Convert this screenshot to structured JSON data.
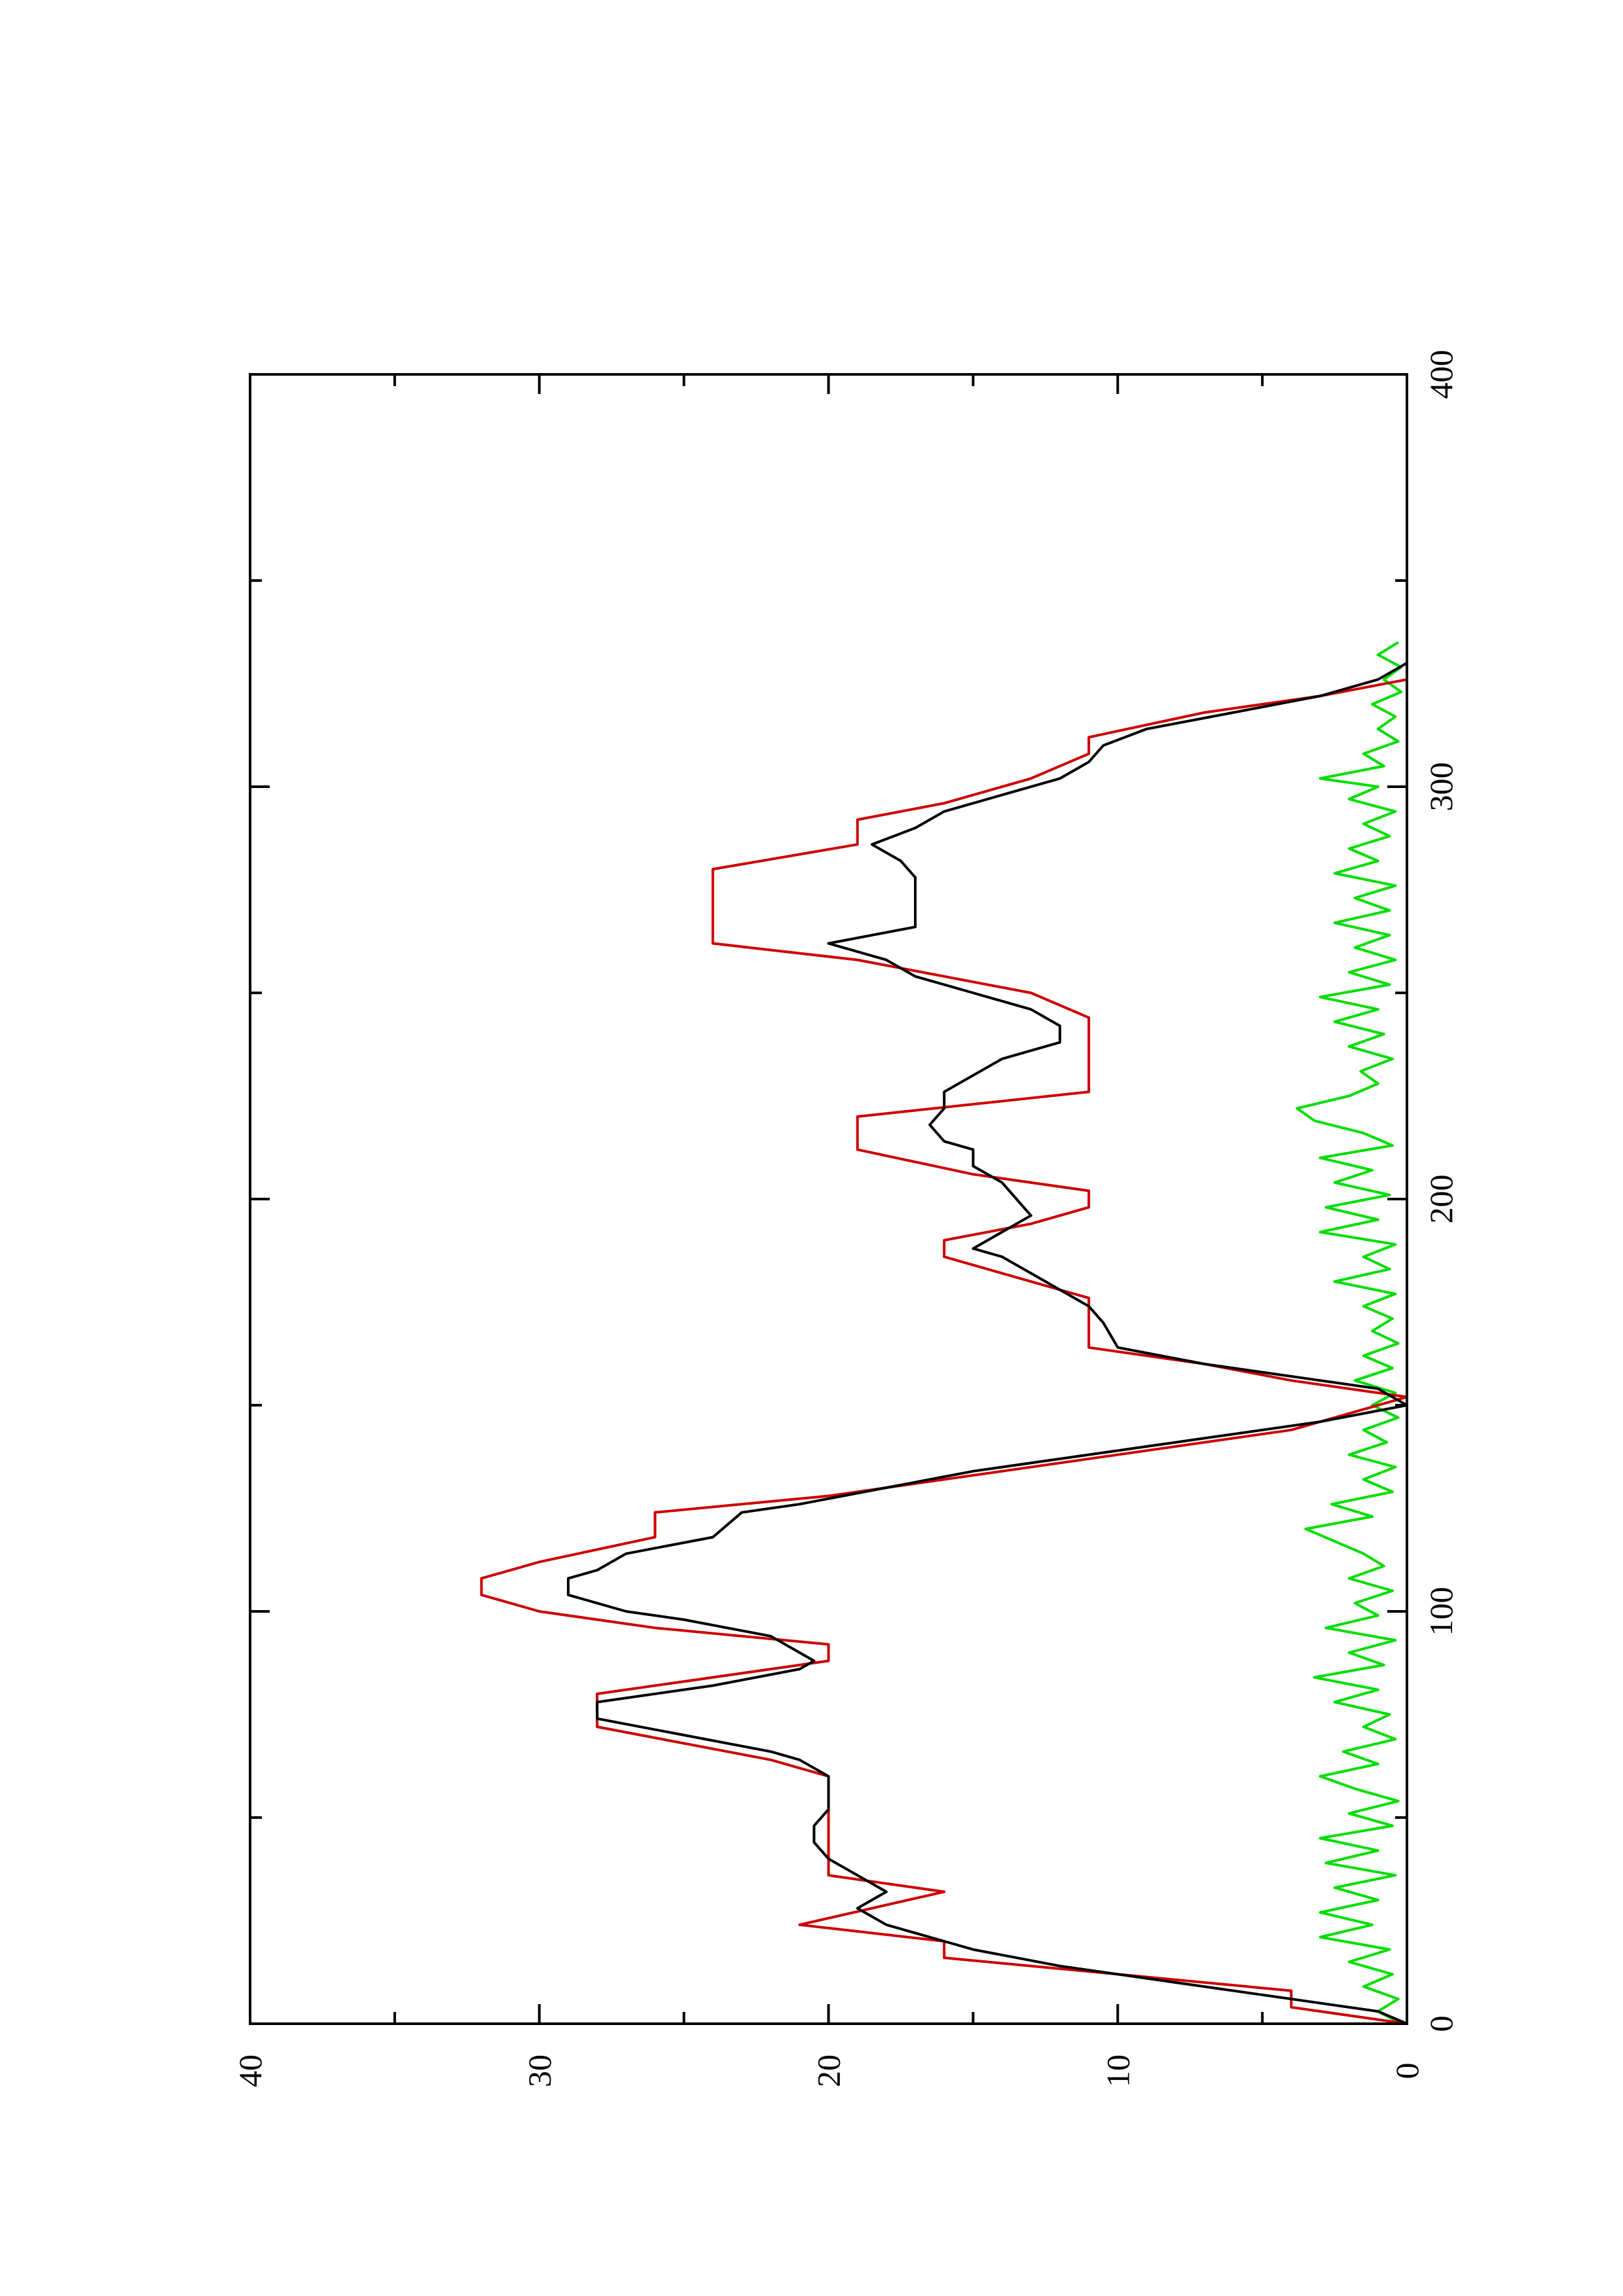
{
  "colors": {
    "background": "#ffffff",
    "frame": "#000000",
    "step_series": "#cc0000",
    "smooth_series": "#000000",
    "noise_series": "#00dd00"
  },
  "chart_data": {
    "type": "line",
    "orientation": "rotated-90-ccw",
    "title": "",
    "xlabel": "",
    "ylabel": "",
    "xlim": [
      0,
      400
    ],
    "ylim": [
      0,
      40
    ],
    "x_ticks": [
      0,
      100,
      200,
      300,
      400
    ],
    "x_minor_ticks": [
      50,
      150,
      250,
      350
    ],
    "y_ticks": [
      0,
      10,
      20,
      30,
      40
    ],
    "y_minor_ticks": [
      5,
      15,
      25,
      35
    ],
    "x_tick_labels": [
      "0",
      "100",
      "200",
      "300",
      "400"
    ],
    "y_tick_labels": [
      "0",
      "10",
      "20",
      "30",
      "40"
    ],
    "grid": false,
    "legend": "none",
    "series": [
      {
        "color": "#cc0000",
        "points": [
          [
            0,
            0
          ],
          [
            4,
            4
          ],
          [
            8,
            4
          ],
          [
            16,
            16
          ],
          [
            20,
            16
          ],
          [
            24,
            21
          ],
          [
            32,
            16
          ],
          [
            36,
            20
          ],
          [
            48,
            20
          ],
          [
            56,
            20
          ],
          [
            60,
            20
          ],
          [
            64,
            22
          ],
          [
            72,
            28
          ],
          [
            80,
            28
          ],
          [
            88,
            20
          ],
          [
            92,
            20
          ],
          [
            96,
            26
          ],
          [
            100,
            30
          ],
          [
            104,
            32
          ],
          [
            108,
            32
          ],
          [
            112,
            30
          ],
          [
            118,
            26
          ],
          [
            124,
            26
          ],
          [
            128,
            20
          ],
          [
            132,
            16
          ],
          [
            140,
            8
          ],
          [
            144,
            4
          ],
          [
            152,
            0
          ],
          [
            156,
            4
          ],
          [
            160,
            7
          ],
          [
            164,
            11
          ],
          [
            170,
            11
          ],
          [
            176,
            11
          ],
          [
            182,
            14
          ],
          [
            186,
            16
          ],
          [
            190,
            16
          ],
          [
            194,
            13
          ],
          [
            198,
            11
          ],
          [
            202,
            11
          ],
          [
            206,
            15
          ],
          [
            212,
            19
          ],
          [
            220,
            19
          ],
          [
            226,
            11
          ],
          [
            236,
            11
          ],
          [
            244,
            11
          ],
          [
            250,
            13
          ],
          [
            254,
            16
          ],
          [
            258,
            19
          ],
          [
            262,
            24
          ],
          [
            280,
            24
          ],
          [
            286,
            19
          ],
          [
            292,
            19
          ],
          [
            296,
            16
          ],
          [
            302,
            13
          ],
          [
            308,
            11
          ],
          [
            312,
            11
          ],
          [
            318,
            7
          ],
          [
            322,
            3
          ],
          [
            326,
            0
          ],
          [
            334,
            0
          ]
        ]
      },
      {
        "color": "#000000",
        "points": [
          [
            0,
            0
          ],
          [
            3,
            1
          ],
          [
            6,
            4
          ],
          [
            10,
            8
          ],
          [
            14,
            12
          ],
          [
            18,
            15
          ],
          [
            20,
            16
          ],
          [
            24,
            18
          ],
          [
            28,
            19
          ],
          [
            32,
            18
          ],
          [
            36,
            19
          ],
          [
            40,
            20
          ],
          [
            44,
            20.5
          ],
          [
            48,
            20.5
          ],
          [
            52,
            20
          ],
          [
            56,
            20
          ],
          [
            60,
            20
          ],
          [
            64,
            21
          ],
          [
            66,
            22
          ],
          [
            70,
            25
          ],
          [
            74,
            28
          ],
          [
            78,
            28
          ],
          [
            82,
            24
          ],
          [
            86,
            21
          ],
          [
            88,
            20.5
          ],
          [
            90,
            21
          ],
          [
            94,
            22
          ],
          [
            98,
            25
          ],
          [
            100,
            27
          ],
          [
            104,
            29
          ],
          [
            108,
            29
          ],
          [
            110,
            28
          ],
          [
            114,
            27
          ],
          [
            118,
            24
          ],
          [
            124,
            23
          ],
          [
            126,
            21
          ],
          [
            130,
            18
          ],
          [
            134,
            15
          ],
          [
            138,
            11
          ],
          [
            142,
            7
          ],
          [
            146,
            3
          ],
          [
            150,
            0
          ],
          [
            154,
            1
          ],
          [
            156,
            3
          ],
          [
            160,
            7
          ],
          [
            164,
            10
          ],
          [
            170,
            10.5
          ],
          [
            174,
            11
          ],
          [
            178,
            12
          ],
          [
            182,
            13
          ],
          [
            186,
            14
          ],
          [
            188,
            15
          ],
          [
            192,
            14
          ],
          [
            196,
            13
          ],
          [
            200,
            13.5
          ],
          [
            204,
            14
          ],
          [
            208,
            15
          ],
          [
            212,
            15
          ],
          [
            214,
            16
          ],
          [
            218,
            16.5
          ],
          [
            222,
            16
          ],
          [
            226,
            16
          ],
          [
            230,
            15
          ],
          [
            234,
            14
          ],
          [
            238,
            12
          ],
          [
            242,
            12
          ],
          [
            246,
            13
          ],
          [
            250,
            15
          ],
          [
            254,
            17
          ],
          [
            258,
            18
          ],
          [
            262,
            20
          ],
          [
            266,
            17
          ],
          [
            270,
            17
          ],
          [
            274,
            17
          ],
          [
            278,
            17
          ],
          [
            282,
            17.5
          ],
          [
            286,
            18.5
          ],
          [
            290,
            17
          ],
          [
            294,
            16
          ],
          [
            298,
            14
          ],
          [
            302,
            12
          ],
          [
            306,
            11
          ],
          [
            310,
            10.5
          ],
          [
            314,
            9
          ],
          [
            318,
            6
          ],
          [
            322,
            3
          ],
          [
            326,
            1
          ],
          [
            330,
            0
          ]
        ]
      },
      {
        "color": "#00dd00",
        "points": [
          [
            0,
            0.2
          ],
          [
            3,
            1
          ],
          [
            6,
            0.3
          ],
          [
            9,
            1.5
          ],
          [
            12,
            0.5
          ],
          [
            15,
            2
          ],
          [
            18,
            0.6
          ],
          [
            21,
            3
          ],
          [
            24,
            1.2
          ],
          [
            27,
            3
          ],
          [
            30,
            1
          ],
          [
            33,
            2.5
          ],
          [
            36,
            0.4
          ],
          [
            39,
            2.8
          ],
          [
            42,
            1
          ],
          [
            45,
            3
          ],
          [
            48,
            0.5
          ],
          [
            51,
            2
          ],
          [
            54,
            0.3
          ],
          [
            57,
            1.8
          ],
          [
            60,
            3
          ],
          [
            63,
            1
          ],
          [
            66,
            2.2
          ],
          [
            69,
            0.4
          ],
          [
            72,
            1.5
          ],
          [
            75,
            0.6
          ],
          [
            78,
            2.5
          ],
          [
            81,
            1
          ],
          [
            84,
            3.2
          ],
          [
            87,
            0.8
          ],
          [
            90,
            2
          ],
          [
            93,
            0.4
          ],
          [
            96,
            2.8
          ],
          [
            99,
            1
          ],
          [
            102,
            1.8
          ],
          [
            105,
            0.5
          ],
          [
            108,
            2
          ],
          [
            111,
            0.8
          ],
          [
            114,
            1.5
          ],
          [
            117,
            2.5
          ],
          [
            120,
            3.5
          ],
          [
            123,
            1.2
          ],
          [
            126,
            2.6
          ],
          [
            129,
            0.5
          ],
          [
            132,
            1.5
          ],
          [
            135,
            0.4
          ],
          [
            138,
            2
          ],
          [
            141,
            0.7
          ],
          [
            144,
            1.5
          ],
          [
            147,
            0.3
          ],
          [
            150,
            1.2
          ],
          [
            153,
            0.4
          ],
          [
            156,
            1.8
          ],
          [
            159,
            0.5
          ],
          [
            162,
            1.5
          ],
          [
            165,
            0.3
          ],
          [
            168,
            1.2
          ],
          [
            171,
            0.5
          ],
          [
            174,
            1.5
          ],
          [
            177,
            0.4
          ],
          [
            180,
            2.5
          ],
          [
            183,
            0.6
          ],
          [
            186,
            1.5
          ],
          [
            189,
            0.4
          ],
          [
            192,
            3
          ],
          [
            195,
            1
          ],
          [
            198,
            2.8
          ],
          [
            201,
            0.6
          ],
          [
            204,
            2.5
          ],
          [
            207,
            1.2
          ],
          [
            210,
            3
          ],
          [
            213,
            0.5
          ],
          [
            216,
            1.5
          ],
          [
            219,
            3.2
          ],
          [
            222,
            3.8
          ],
          [
            225,
            2
          ],
          [
            228,
            1
          ],
          [
            231,
            1.6
          ],
          [
            234,
            0.5
          ],
          [
            237,
            2
          ],
          [
            240,
            0.8
          ],
          [
            243,
            2.5
          ],
          [
            246,
            1
          ],
          [
            249,
            3
          ],
          [
            252,
            0.6
          ],
          [
            255,
            2
          ],
          [
            258,
            0.4
          ],
          [
            261,
            1.8
          ],
          [
            264,
            0.6
          ],
          [
            267,
            2.5
          ],
          [
            270,
            0.6
          ],
          [
            273,
            1.8
          ],
          [
            276,
            0.4
          ],
          [
            279,
            2.5
          ],
          [
            282,
            1
          ],
          [
            285,
            2
          ],
          [
            288,
            0.6
          ],
          [
            291,
            1.5
          ],
          [
            294,
            0.4
          ],
          [
            297,
            2
          ],
          [
            300,
            1
          ],
          [
            302,
            3
          ],
          [
            305,
            0.8
          ],
          [
            308,
            1.5
          ],
          [
            311,
            0.3
          ],
          [
            314,
            1
          ],
          [
            317,
            0.4
          ],
          [
            320,
            1.2
          ],
          [
            323,
            0.2
          ],
          [
            326,
            0.8
          ],
          [
            329,
            0.2
          ],
          [
            332,
            1
          ],
          [
            335,
            0.3
          ]
        ]
      }
    ]
  }
}
